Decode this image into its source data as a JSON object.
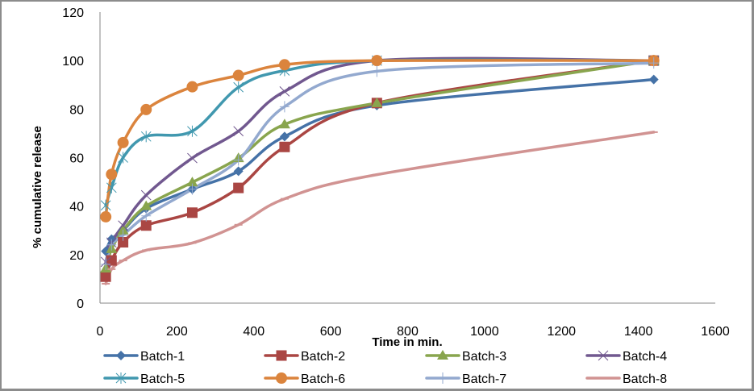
{
  "chart_data": {
    "type": "line",
    "title": "",
    "xlabel": "Time in min.",
    "ylabel": "% cumulative release",
    "xlim": [
      0,
      1600
    ],
    "ylim": [
      0,
      120
    ],
    "xticks": [
      0,
      200,
      400,
      600,
      800,
      1000,
      1200,
      1400,
      1600
    ],
    "yticks": [
      0,
      20,
      40,
      60,
      80,
      100,
      120
    ],
    "grid": false,
    "smooth": true,
    "legend_position": "bottom",
    "x": [
      15,
      30,
      60,
      120,
      240,
      360,
      480,
      720,
      1440
    ],
    "series": [
      {
        "name": "Batch-1",
        "color": "#4572a7",
        "marker": "diamond",
        "values": [
          21.4,
          26.4,
          30,
          39,
          47,
          54.4,
          68.7,
          81.5,
          92.2
        ]
      },
      {
        "name": "Batch-2",
        "color": "#aa4643",
        "marker": "square",
        "values": [
          10.9,
          17.6,
          25.1,
          32,
          37.3,
          47.5,
          64.4,
          82.5,
          100
        ]
      },
      {
        "name": "Batch-3",
        "color": "#89a54e",
        "marker": "triangle",
        "values": [
          14.3,
          22.3,
          30,
          40,
          49.8,
          59.8,
          73.7,
          82.5,
          100
        ]
      },
      {
        "name": "Batch-4",
        "color": "#71588f",
        "marker": "x",
        "values": [
          17,
          25,
          32,
          44.5,
          59.8,
          70.9,
          87.3,
          100,
          100
        ]
      },
      {
        "name": "Batch-5",
        "color": "#4198af",
        "marker": "star",
        "values": [
          40.3,
          47.6,
          60,
          68.7,
          70.9,
          89,
          95.9,
          100,
          100
        ]
      },
      {
        "name": "Batch-6",
        "color": "#db843d",
        "marker": "circle",
        "values": [
          35.6,
          53.1,
          66.2,
          79.8,
          89.2,
          93.9,
          98.3,
          100,
          100
        ]
      },
      {
        "name": "Batch-7",
        "color": "#93a9cf",
        "marker": "plus",
        "values": [
          16,
          24,
          28,
          36,
          47,
          59,
          81,
          95.6,
          99
        ]
      },
      {
        "name": "Batch-8",
        "color": "#d19392",
        "marker": "dash",
        "values": [
          8,
          14,
          17.6,
          21.8,
          24.8,
          32.3,
          43,
          53,
          70.5
        ]
      }
    ]
  }
}
